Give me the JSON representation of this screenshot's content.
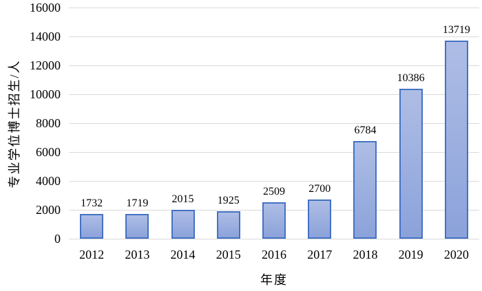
{
  "chart_data": {
    "type": "bar",
    "title": "",
    "categories": [
      "2012",
      "2013",
      "2014",
      "2015",
      "2016",
      "2017",
      "2018",
      "2019",
      "2020"
    ],
    "values": [
      1732,
      1719,
      2015,
      1925,
      2509,
      2700,
      6784,
      10386,
      13719
    ],
    "xlabel": "年度",
    "ylabel": "专业学位博士招生/人",
    "ylim": [
      0,
      16000
    ],
    "ytick_step": 2000,
    "grid": "horizontal-only",
    "legend": "none",
    "data_labels_position": "above-bars",
    "colors": {
      "bar_fill_top": "#aebde5",
      "bar_fill_bottom": "#8ba2da",
      "bar_border": "#4472c4",
      "gridline": "#d9d9d9",
      "text": "#000000",
      "background": "#ffffff"
    }
  }
}
